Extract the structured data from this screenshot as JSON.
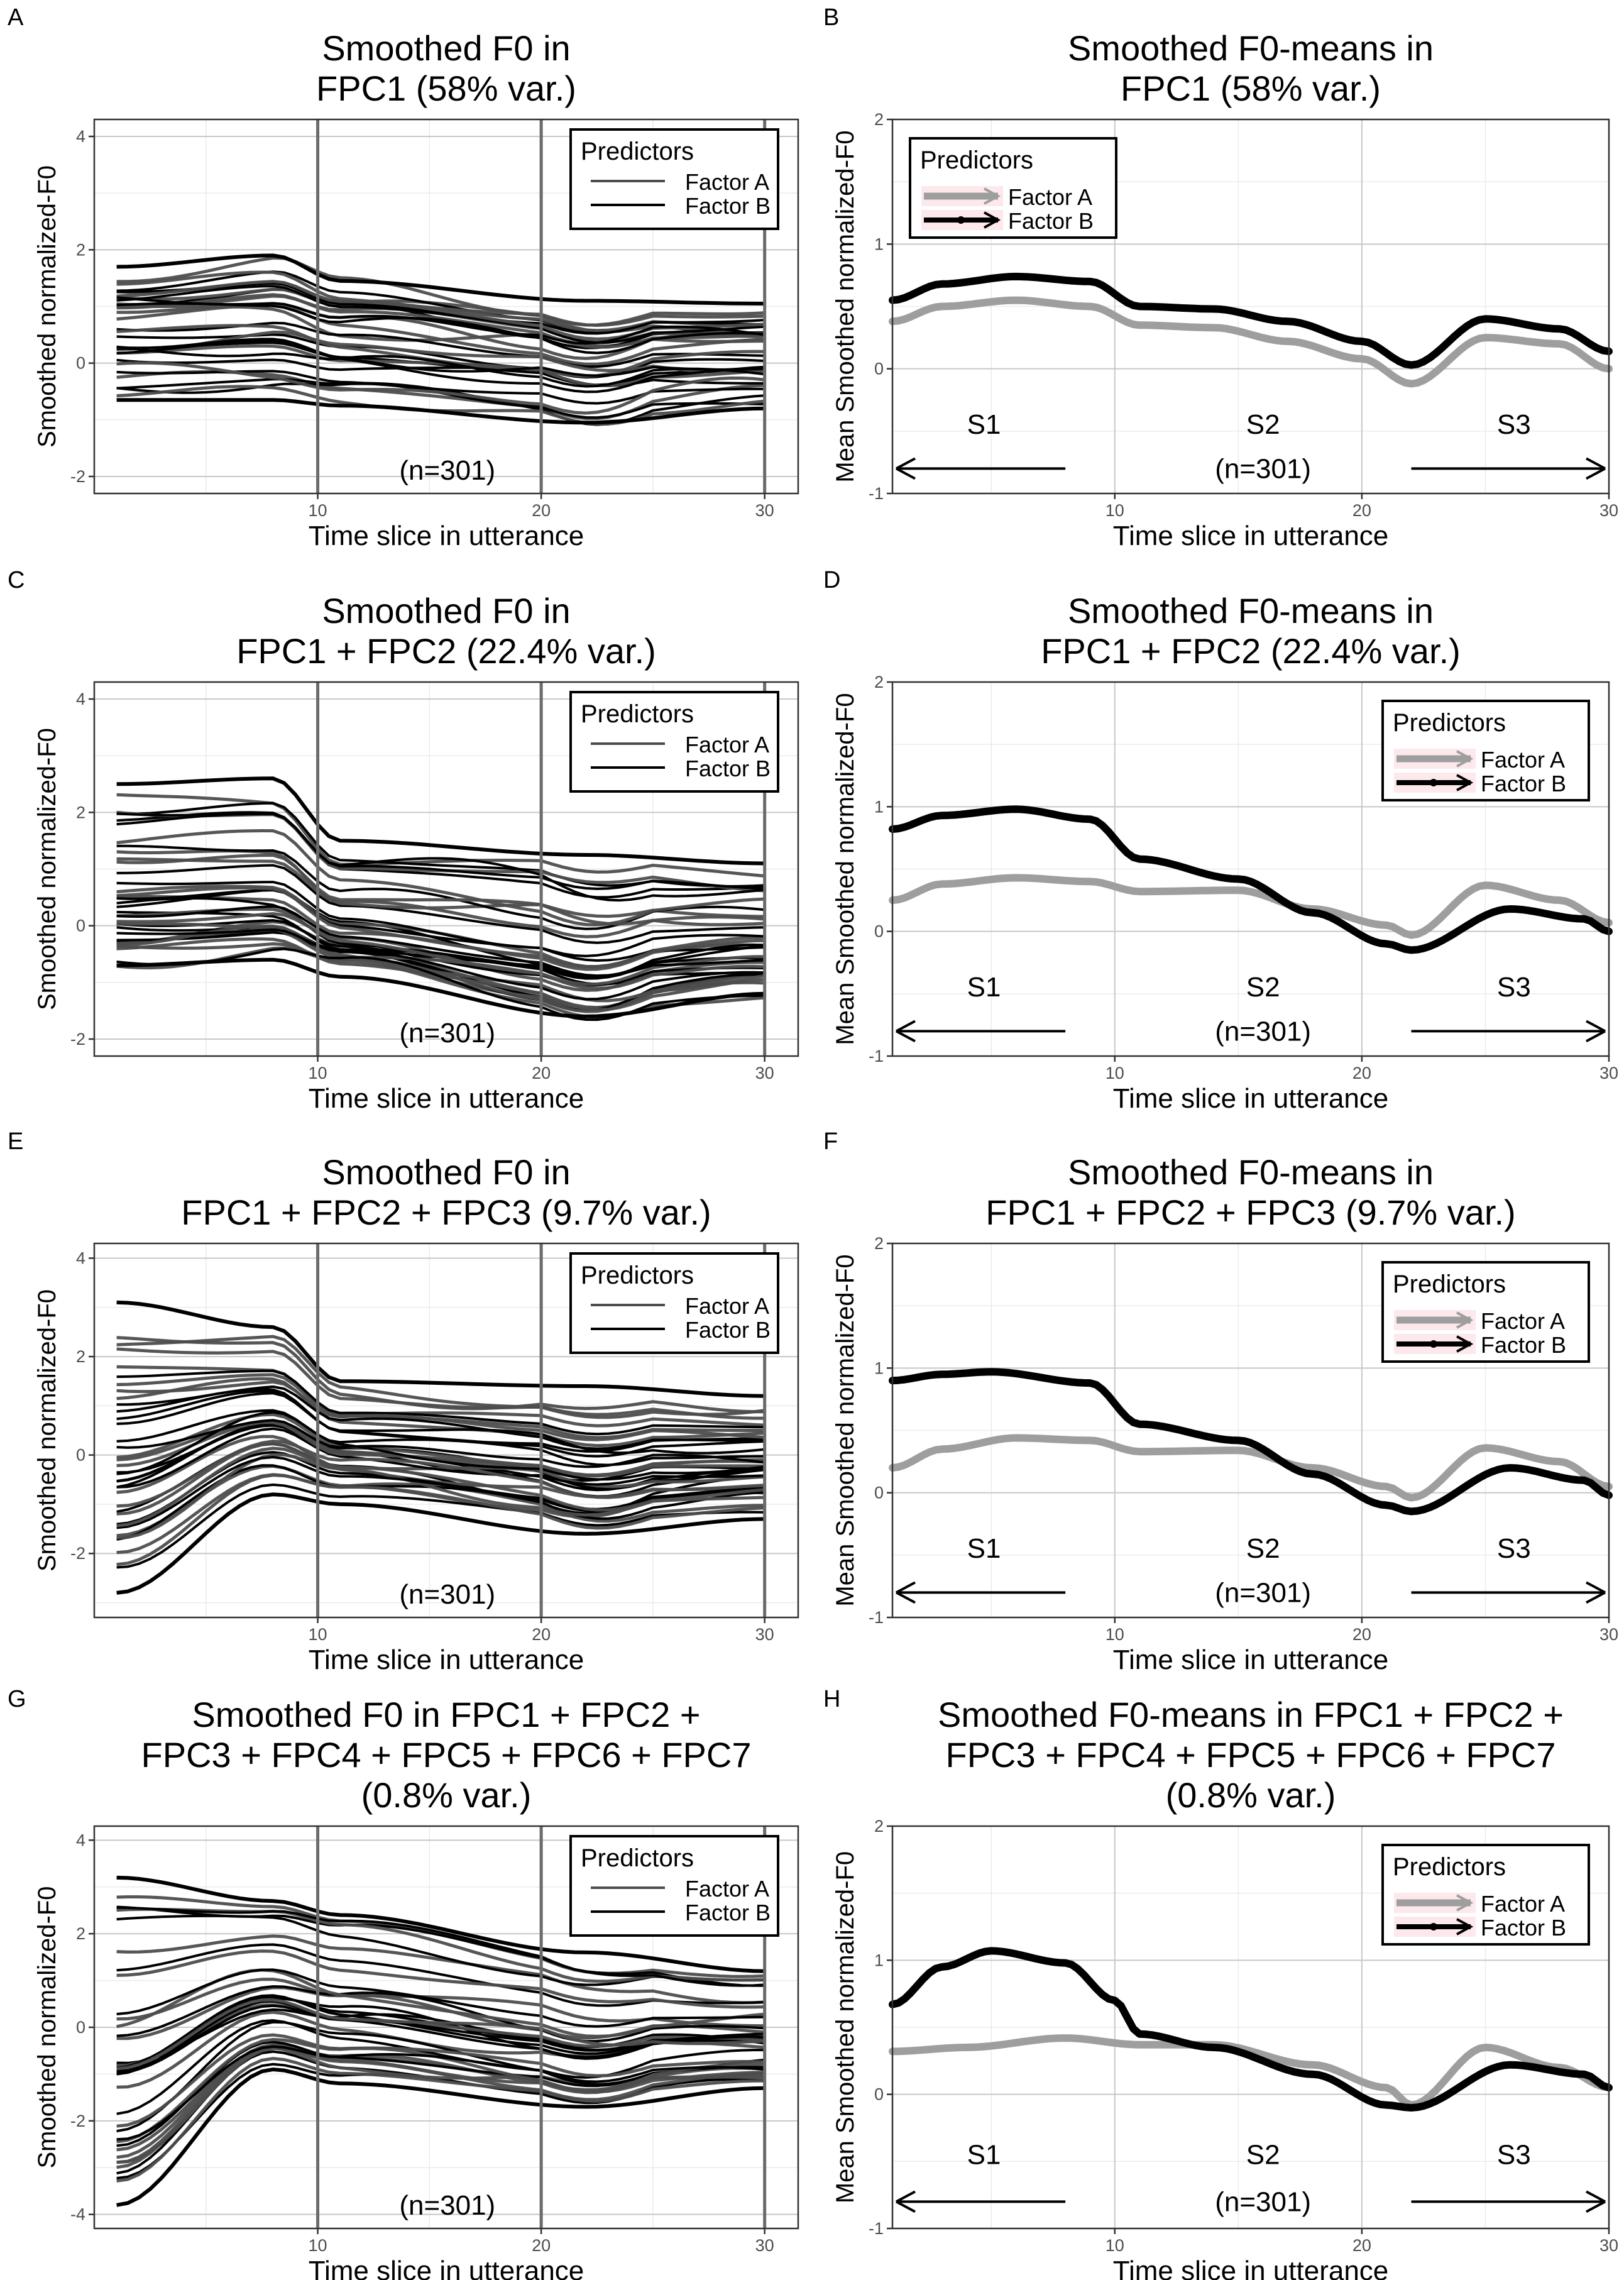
{
  "figure": {
    "n_label": "(n=301)"
  },
  "chart_data": [
    {
      "panel": "A",
      "type": "line",
      "kind": "individual",
      "title": [
        "Smoothed F0 in",
        "FPC1 (58% var.)"
      ],
      "xlabel": "Time slice in utterance",
      "ylabel": "Smoothed normalized-F0",
      "xlim": [
        0,
        31.5
      ],
      "ylim": [
        -2.3,
        4.3
      ],
      "xticks": [
        10,
        20,
        30
      ],
      "yticks": [
        -2,
        0,
        2,
        4
      ],
      "vlines": [
        10,
        20,
        30
      ],
      "legend": {
        "title": "Predictors",
        "position": "top-right",
        "entries": [
          "Factor A",
          "Factor B"
        ]
      },
      "annotation": "(n=301)",
      "ensemble": {
        "band_min": [
          -0.65,
          -0.65,
          -0.75,
          -1.05,
          -0.8
        ],
        "band_max": [
          1.7,
          1.9,
          1.45,
          1.1,
          1.05
        ],
        "lines_per_factor": 16,
        "seed": 11
      }
    },
    {
      "panel": "B",
      "type": "line",
      "kind": "means",
      "title": [
        "Smoothed F0-means in",
        "FPC1 (58% var.)"
      ],
      "xlabel": "Time slice in utterance",
      "ylabel": "Mean Smoothed normalized-F0",
      "xlim": [
        1,
        30
      ],
      "ylim": [
        -1,
        2
      ],
      "xticks": [
        10,
        20,
        30
      ],
      "yticks": [
        -1,
        0,
        1,
        2
      ],
      "legend": {
        "title": "Predictors",
        "position": "top-left",
        "entries": [
          "Factor A",
          "Factor B"
        ]
      },
      "segments": {
        "labels": [
          "S1",
          "S2",
          "S3"
        ],
        "s1_end": 8,
        "s3_start": 22
      },
      "annotation": "(n=301)",
      "series": [
        {
          "name": "Factor A",
          "x": [
            1,
            3,
            6,
            9,
            11,
            14,
            17,
            20,
            22,
            25,
            28,
            30
          ],
          "y": [
            0.38,
            0.5,
            0.55,
            0.5,
            0.35,
            0.33,
            0.22,
            0.08,
            -0.12,
            0.25,
            0.2,
            0.0
          ]
        },
        {
          "name": "Factor B",
          "x": [
            1,
            3,
            6,
            9,
            11,
            14,
            17,
            20,
            22,
            25,
            28,
            30
          ],
          "y": [
            0.55,
            0.68,
            0.74,
            0.7,
            0.5,
            0.48,
            0.38,
            0.22,
            0.03,
            0.4,
            0.32,
            0.14
          ]
        }
      ]
    },
    {
      "panel": "C",
      "type": "line",
      "kind": "individual",
      "title": [
        "Smoothed F0 in",
        "FPC1 + FPC2 (22.4% var.)"
      ],
      "xlabel": "Time slice in utterance",
      "ylabel": "Smoothed normalized-F0",
      "xlim": [
        0,
        31.5
      ],
      "ylim": [
        -2.3,
        4.3
      ],
      "xticks": [
        10,
        20,
        30
      ],
      "yticks": [
        -2,
        0,
        2,
        4
      ],
      "vlines": [
        10,
        20,
        30
      ],
      "legend": {
        "title": "Predictors",
        "position": "top-right",
        "entries": [
          "Factor A",
          "Factor B"
        ]
      },
      "annotation": "(n=301)",
      "ensemble": {
        "band_min": [
          -0.7,
          -0.6,
          -0.9,
          -1.6,
          -1.2
        ],
        "band_max": [
          2.5,
          2.6,
          1.5,
          1.25,
          1.1
        ],
        "lines_per_factor": 18,
        "seed": 23
      }
    },
    {
      "panel": "D",
      "type": "line",
      "kind": "means",
      "title": [
        "Smoothed F0-means in",
        "FPC1 + FPC2 (22.4% var.)"
      ],
      "xlabel": "Time slice in utterance",
      "ylabel": "Mean Smoothed normalized-F0",
      "xlim": [
        1,
        30
      ],
      "ylim": [
        -1,
        2
      ],
      "xticks": [
        10,
        20,
        30
      ],
      "yticks": [
        -1,
        0,
        1,
        2
      ],
      "legend": {
        "title": "Predictors",
        "position": "top-right",
        "entries": [
          "Factor A",
          "Factor B"
        ]
      },
      "segments": {
        "labels": [
          "S1",
          "S2",
          "S3"
        ],
        "s1_end": 8,
        "s3_start": 22
      },
      "annotation": "(n=301)",
      "series": [
        {
          "name": "Factor A",
          "x": [
            1,
            3,
            6,
            9,
            11,
            15,
            18,
            21,
            22,
            25,
            28,
            30
          ],
          "y": [
            0.25,
            0.38,
            0.43,
            0.4,
            0.32,
            0.33,
            0.18,
            0.05,
            -0.03,
            0.37,
            0.25,
            0.07
          ]
        },
        {
          "name": "Factor B",
          "x": [
            1,
            3,
            6,
            9,
            11,
            15,
            18,
            21,
            22,
            26,
            29,
            30
          ],
          "y": [
            0.82,
            0.93,
            0.98,
            0.9,
            0.58,
            0.42,
            0.15,
            -0.1,
            -0.15,
            0.18,
            0.1,
            0.0
          ]
        }
      ]
    },
    {
      "panel": "E",
      "type": "line",
      "kind": "individual",
      "title": [
        "Smoothed F0 in",
        "FPC1 + FPC2 + FPC3 (9.7% var.)"
      ],
      "xlabel": "Time slice in utterance",
      "ylabel": "Smoothed normalized-F0",
      "xlim": [
        0,
        31.5
      ],
      "ylim": [
        -3.3,
        4.3
      ],
      "xticks": [
        10,
        20,
        30
      ],
      "yticks": [
        -2,
        0,
        2,
        4
      ],
      "vlines": [
        10,
        20,
        30
      ],
      "legend": {
        "title": "Predictors",
        "position": "top-right",
        "entries": [
          "Factor A",
          "Factor B"
        ]
      },
      "annotation": "(n=301)",
      "ensemble": {
        "band_min": [
          -2.8,
          -0.8,
          -1.0,
          -1.6,
          -1.3
        ],
        "band_max": [
          3.1,
          2.6,
          1.5,
          1.4,
          1.2
        ],
        "lines_per_factor": 18,
        "seed": 37
      }
    },
    {
      "panel": "F",
      "type": "line",
      "kind": "means",
      "title": [
        "Smoothed F0-means in",
        "FPC1 + FPC2 + FPC3 (9.7% var.)"
      ],
      "xlabel": "Time slice in utterance",
      "ylabel": "Mean Smoothed normalized-F0",
      "xlim": [
        1,
        30
      ],
      "ylim": [
        -1,
        2
      ],
      "xticks": [
        10,
        20,
        30
      ],
      "yticks": [
        -1,
        0,
        1,
        2
      ],
      "legend": {
        "title": "Predictors",
        "position": "top-right",
        "entries": [
          "Factor A",
          "Factor B"
        ]
      },
      "segments": {
        "labels": [
          "S1",
          "S2",
          "S3"
        ],
        "s1_end": 8,
        "s3_start": 22
      },
      "annotation": "(n=301)",
      "series": [
        {
          "name": "Factor A",
          "x": [
            1,
            3,
            6,
            9,
            11,
            15,
            18,
            21,
            22,
            25,
            28,
            30
          ],
          "y": [
            0.2,
            0.35,
            0.44,
            0.42,
            0.33,
            0.34,
            0.2,
            0.05,
            -0.04,
            0.36,
            0.25,
            0.05
          ]
        },
        {
          "name": "Factor B",
          "x": [
            1,
            3,
            5,
            9,
            11,
            15,
            18,
            21,
            22,
            26,
            29,
            30
          ],
          "y": [
            0.9,
            0.95,
            0.97,
            0.88,
            0.55,
            0.42,
            0.15,
            -0.1,
            -0.15,
            0.2,
            0.1,
            -0.02
          ]
        }
      ]
    },
    {
      "panel": "G",
      "type": "line",
      "kind": "individual",
      "title": [
        "Smoothed F0 in FPC1 + FPC2 +",
        "FPC3 + FPC4 + FPC5 + FPC6 + FPC7",
        "(0.8% var.)"
      ],
      "xlabel": "Time slice in utterance",
      "ylabel": "Smoothed normalized-F0",
      "xlim": [
        0,
        31.5
      ],
      "ylim": [
        -4.3,
        4.3
      ],
      "xticks": [
        10,
        20,
        30
      ],
      "yticks": [
        -4,
        -2,
        0,
        2,
        4
      ],
      "vlines": [
        10,
        20,
        30
      ],
      "legend": {
        "title": "Predictors",
        "position": "top-right",
        "entries": [
          "Factor A",
          "Factor B"
        ]
      },
      "annotation": "(n=301)",
      "ensemble": {
        "band_min": [
          -3.8,
          -0.9,
          -1.2,
          -1.7,
          -1.3
        ],
        "band_max": [
          3.2,
          2.7,
          2.4,
          1.6,
          1.2
        ],
        "lines_per_factor": 18,
        "seed": 53
      }
    },
    {
      "panel": "H",
      "type": "line",
      "kind": "means",
      "title": [
        "Smoothed F0-means in FPC1 + FPC2 +",
        "FPC3 + FPC4 + FPC5 + FPC6 + FPC7",
        "(0.8% var.)"
      ],
      "xlabel": "Time slice in utterance",
      "ylabel": "Mean Smoothed normalized-F0",
      "xlim": [
        1,
        30
      ],
      "ylim": [
        -1,
        2
      ],
      "xticks": [
        10,
        20,
        30
      ],
      "yticks": [
        -1,
        0,
        1,
        2
      ],
      "legend": {
        "title": "Predictors",
        "position": "top-right",
        "entries": [
          "Factor A",
          "Factor B"
        ]
      },
      "segments": {
        "labels": [
          "S1",
          "S2",
          "S3"
        ],
        "s1_end": 8,
        "s3_start": 22
      },
      "annotation": "(n=301)",
      "series": [
        {
          "name": "Factor A",
          "x": [
            1,
            4,
            8,
            11,
            14,
            18,
            21,
            22,
            25,
            28,
            30
          ],
          "y": [
            0.32,
            0.35,
            0.42,
            0.37,
            0.37,
            0.22,
            0.05,
            -0.08,
            0.35,
            0.2,
            0.05
          ]
        },
        {
          "name": "Factor B",
          "x": [
            1,
            3,
            5,
            8,
            10,
            11,
            14,
            18,
            21,
            22,
            26,
            29,
            30
          ],
          "y": [
            0.67,
            0.95,
            1.07,
            0.98,
            0.7,
            0.45,
            0.35,
            0.15,
            -0.08,
            -0.1,
            0.22,
            0.15,
            0.05
          ]
        }
      ]
    }
  ]
}
